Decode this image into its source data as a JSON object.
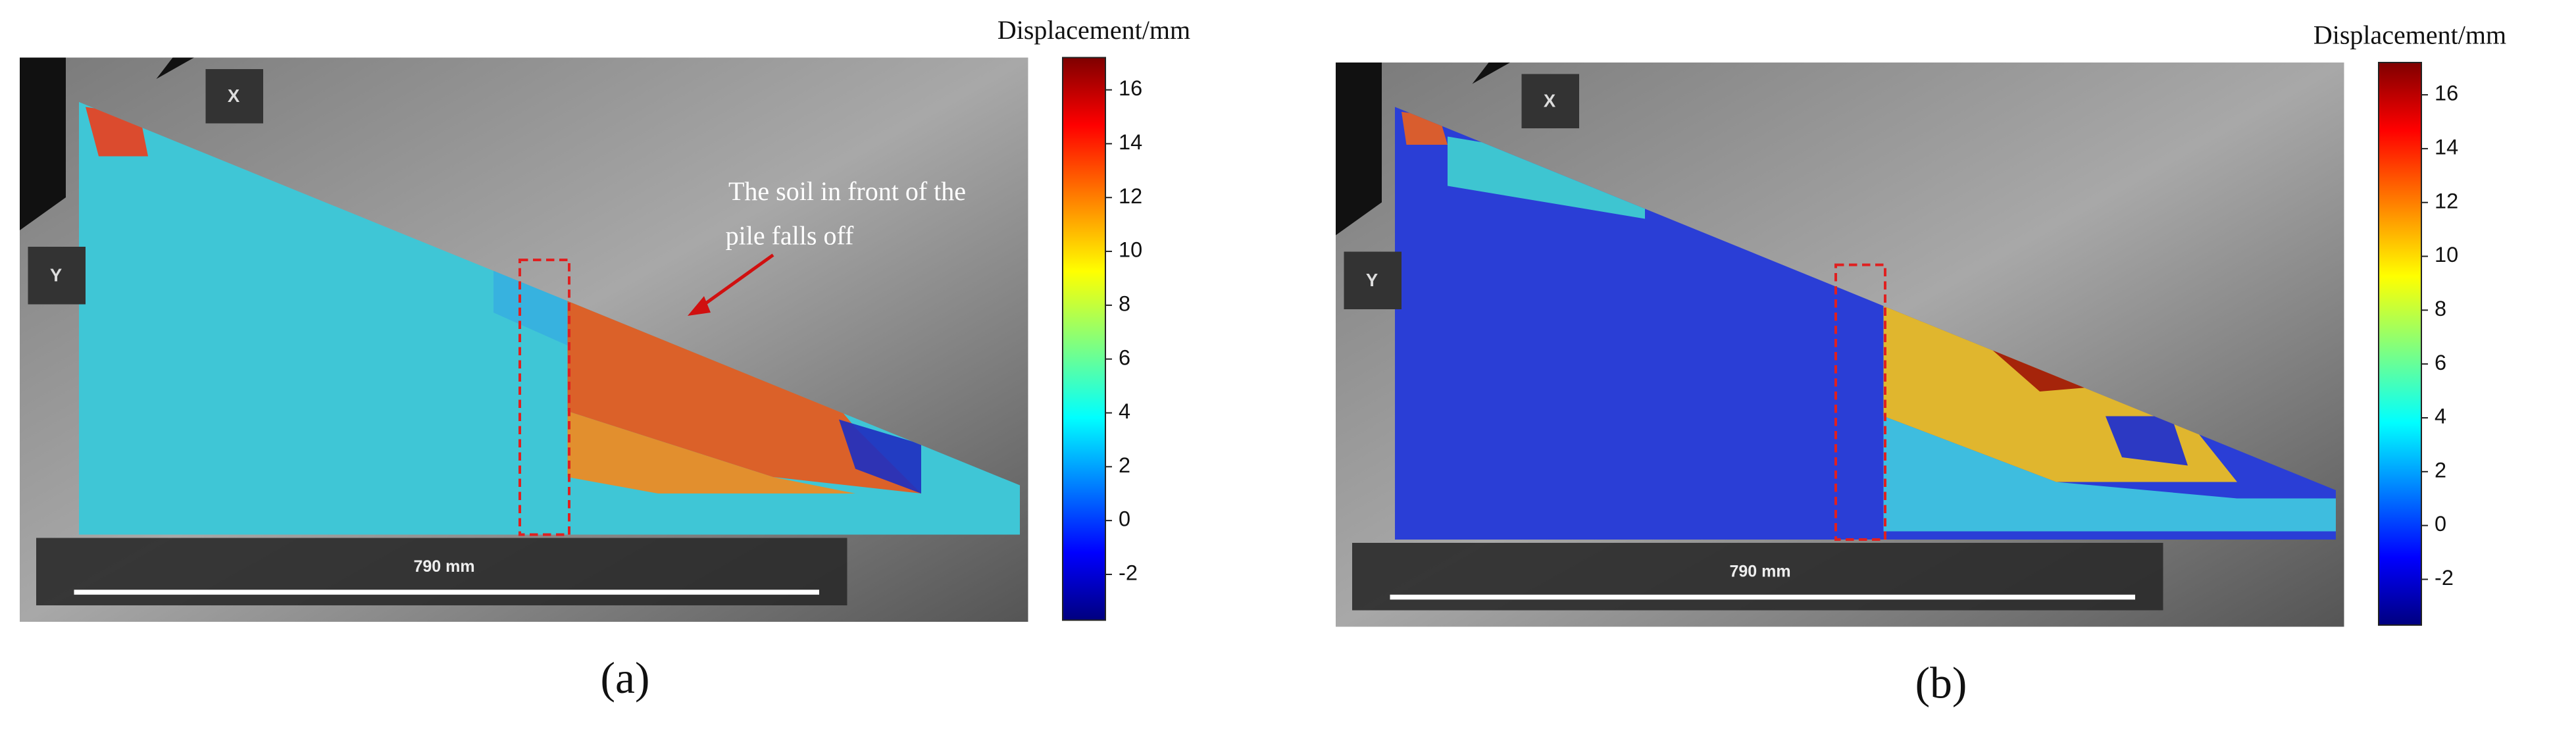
{
  "panels": [
    {
      "caption": "(a)",
      "axis_x": "X",
      "axis_y": "Y",
      "scale_bar": "790 mm",
      "annotation": [
        "The soil in front of the",
        "pile falls off"
      ],
      "colorbar": {
        "title": "Displacement/mm",
        "lim": [
          -3.7,
          17.2
        ],
        "ticks": [
          -2,
          0,
          2,
          4,
          6,
          8,
          10,
          12,
          14,
          16
        ]
      }
    },
    {
      "caption": "(b)",
      "axis_x": "X",
      "axis_y": "Y",
      "scale_bar": "790 mm",
      "colorbar": {
        "title": "Displacement/mm",
        "lim": [
          -3.7,
          17.2
        ],
        "ticks": [
          -2,
          0,
          2,
          4,
          6,
          8,
          10,
          12,
          14,
          16
        ]
      }
    }
  ]
}
